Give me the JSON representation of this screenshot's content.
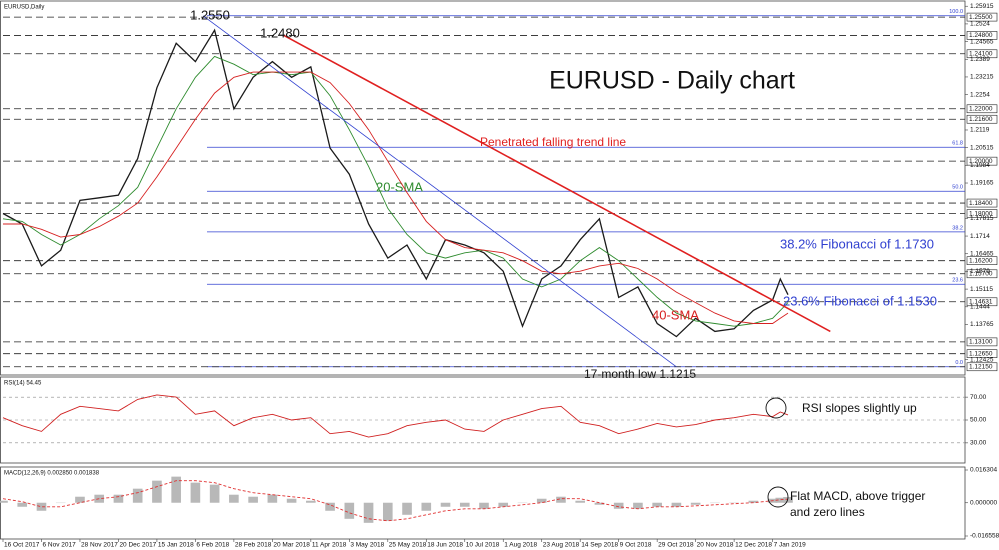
{
  "chart_data": [
    {
      "type": "line",
      "title": "EURUSD - Daily chart",
      "label": "EURUSD,Daily",
      "x": [
        0,
        0.5,
        1,
        1.5,
        2,
        2.5,
        3,
        3.5,
        4,
        4.5,
        5,
        5.5,
        6,
        6.5,
        7,
        7.5,
        8,
        8.5,
        9,
        9.5,
        10,
        10.5,
        11,
        11.5,
        12,
        12.5,
        13,
        13.5,
        14,
        14.5,
        15,
        15.5,
        16,
        16.5,
        17,
        17.5,
        18,
        18.5,
        19,
        19.5,
        20,
        20.2,
        20.4
      ],
      "xlim": [
        0,
        25
      ],
      "xticks": [
        {
          "value": 0,
          "label": "16 Oct 2017"
        },
        {
          "value": 1,
          "label": "6 Nov 2017"
        },
        {
          "value": 2,
          "label": "28 Nov 2017"
        },
        {
          "value": 3,
          "label": "20 Dec 2017"
        },
        {
          "value": 4,
          "label": "15 Jan 2018"
        },
        {
          "value": 5,
          "label": "6 Feb 2018"
        },
        {
          "value": 6,
          "label": "28 Feb 2018"
        },
        {
          "value": 7,
          "label": "20 Mar 2018"
        },
        {
          "value": 8,
          "label": "11 Apr 2018"
        },
        {
          "value": 9,
          "label": "3 May 2018"
        },
        {
          "value": 10,
          "label": "25 May 2018"
        },
        {
          "value": 11,
          "label": "18 Jun 2018"
        },
        {
          "value": 12,
          "label": "10 Jul 2018"
        },
        {
          "value": 13,
          "label": "1 Aug 2018"
        },
        {
          "value": 14,
          "label": "23 Aug 2018"
        },
        {
          "value": 15,
          "label": "14 Sep 2018"
        },
        {
          "value": 16,
          "label": "9 Oct 2018"
        },
        {
          "value": 17,
          "label": "29 Oct 2018"
        },
        {
          "value": 18,
          "label": "20 Nov 2018"
        },
        {
          "value": 19,
          "label": "12 Dec 2018"
        },
        {
          "value": 20,
          "label": "7 Jan 2019"
        }
      ],
      "ylim": [
        1.1195,
        1.26
      ],
      "yticks": [
        1.25915,
        1.2524,
        1.24565,
        1.2389,
        1.23215,
        1.2254,
        1.2119,
        1.20515,
        1.1984,
        1.19165,
        1.17815,
        1.1714,
        1.16465,
        1.1579,
        1.15115,
        1.1444,
        1.13765,
        1.12425
      ],
      "levels": [
        {
          "value": 1.255,
          "label": "1.25500"
        },
        {
          "value": 1.248,
          "label": "1.24800"
        },
        {
          "value": 1.241,
          "label": "1.24100"
        },
        {
          "value": 1.22,
          "label": "1.22000"
        },
        {
          "value": 1.216,
          "label": "1.21600"
        },
        {
          "value": 1.2,
          "label": "1.20000"
        },
        {
          "value": 1.184,
          "label": "1.18400"
        },
        {
          "value": 1.18,
          "label": "1.18000"
        },
        {
          "value": 1.162,
          "label": "1.16200"
        },
        {
          "value": 1.157,
          "label": "1.15700"
        },
        {
          "value": 1.14631,
          "label": "1.14631"
        },
        {
          "value": 1.131,
          "label": "1.13100"
        },
        {
          "value": 1.1265,
          "label": "1.12650"
        },
        {
          "value": 1.1215,
          "label": "1.12150"
        }
      ],
      "fibonacci": [
        {
          "value": 1.2555,
          "label": "100.0"
        },
        {
          "value": 1.2053,
          "label": "61.8"
        },
        {
          "value": 1.1885,
          "label": "50.0"
        },
        {
          "value": 1.173,
          "label": "38.2"
        },
        {
          "value": 1.153,
          "label": "23.6"
        },
        {
          "value": 1.1215,
          "label": "0.0"
        }
      ],
      "fib_color": "#3040d0",
      "series": [
        {
          "color": "#1a1a1a",
          "values": [
            1.18,
            1.176,
            1.16,
            1.166,
            1.185,
            1.186,
            1.187,
            1.201,
            1.228,
            1.245,
            1.238,
            1.25,
            1.22,
            1.232,
            1.238,
            1.232,
            1.236,
            1.205,
            1.195,
            1.176,
            1.163,
            1.168,
            1.155,
            1.17,
            1.168,
            1.165,
            1.158,
            1.137,
            1.155,
            1.16,
            1.17,
            1.178,
            1.148,
            1.152,
            1.138,
            1.133,
            1.14,
            1.135,
            1.136,
            1.143,
            1.147,
            1.155,
            1.149
          ]
        },
        {
          "name": "20-SMA",
          "color": "#2e8b2e",
          "values": [
            1.178,
            1.177,
            1.172,
            1.168,
            1.172,
            1.178,
            1.183,
            1.19,
            1.205,
            1.22,
            1.232,
            1.24,
            1.237,
            1.233,
            1.234,
            1.233,
            1.234,
            1.225,
            1.212,
            1.198,
            1.182,
            1.172,
            1.165,
            1.163,
            1.165,
            1.166,
            1.163,
            1.155,
            1.152,
            1.155,
            1.162,
            1.167,
            1.162,
            1.155,
            1.148,
            1.142,
            1.139,
            1.138,
            1.137,
            1.138,
            1.14,
            1.143,
            1.146
          ]
        },
        {
          "name": "40-SMA",
          "color": "#d62020",
          "values": [
            1.176,
            1.176,
            1.174,
            1.171,
            1.172,
            1.175,
            1.179,
            1.184,
            1.194,
            1.205,
            1.216,
            1.226,
            1.232,
            1.234,
            1.234,
            1.234,
            1.234,
            1.23,
            1.222,
            1.212,
            1.2,
            1.188,
            1.177,
            1.17,
            1.167,
            1.166,
            1.165,
            1.162,
            1.158,
            1.157,
            1.158,
            1.16,
            1.161,
            1.159,
            1.155,
            1.15,
            1.146,
            1.142,
            1.139,
            1.138,
            1.138,
            1.14,
            1.142
          ]
        }
      ],
      "trend_lines": [
        {
          "name": "Penetrated falling trend line",
          "color": "#e02020",
          "x": [
            7.3,
            21.5
          ],
          "y": [
            1.248,
            1.135
          ]
        },
        {
          "color": "#3040d0",
          "x": [
            5.2,
            17.5
          ],
          "y": [
            1.2555,
            1.1215
          ]
        }
      ],
      "annotations": [
        "1.2550",
        "1.2480",
        "38.2% Fibonacci of 1.1730",
        "23.6% Fibonacci of 1.1530",
        "17-month low 1.1215"
      ]
    },
    {
      "type": "line",
      "label": "RSI(14) 54.45",
      "x": [
        0,
        0.5,
        1,
        1.5,
        2,
        2.5,
        3,
        3.5,
        4,
        4.5,
        5,
        5.5,
        6,
        6.5,
        7,
        7.5,
        8,
        8.5,
        9,
        9.5,
        10,
        10.5,
        11,
        11.5,
        12,
        12.5,
        13,
        13.5,
        14,
        14.5,
        15,
        15.5,
        16,
        16.5,
        17,
        17.5,
        18,
        18.5,
        19,
        19.5,
        20,
        20.2,
        20.4
      ],
      "xlim": [
        0,
        25
      ],
      "ylim": [
        15,
        85
      ],
      "yticks": [
        {
          "value": 70,
          "label": "70.00"
        },
        {
          "value": 50,
          "label": "50.00"
        },
        {
          "value": 30,
          "label": "30.00"
        }
      ],
      "grid": true,
      "series": [
        {
          "color": "#d02020",
          "values": [
            52,
            45,
            40,
            55,
            62,
            60,
            58,
            68,
            72,
            70,
            55,
            58,
            45,
            52,
            55,
            50,
            52,
            38,
            40,
            35,
            38,
            45,
            48,
            50,
            42,
            40,
            50,
            55,
            60,
            62,
            48,
            45,
            38,
            42,
            47,
            44,
            46,
            50,
            52,
            55,
            53,
            57,
            54.45
          ]
        }
      ],
      "annotations": [
        "RSI slopes slightly up"
      ]
    },
    {
      "type": "bar",
      "label": "MACD(12,26,9) 0.002850 0.001838",
      "x": [
        0,
        0.5,
        1,
        1.5,
        2,
        2.5,
        3,
        3.5,
        4,
        4.5,
        5,
        5.5,
        6,
        6.5,
        7,
        7.5,
        8,
        8.5,
        9,
        9.5,
        10,
        10.5,
        11,
        11.5,
        12,
        12.5,
        13,
        13.5,
        14,
        14.5,
        15,
        15.5,
        16,
        16.5,
        17,
        17.5,
        18,
        18.5,
        19,
        19.5,
        20,
        20.2,
        20.4
      ],
      "xlim": [
        0,
        25
      ],
      "ylim": [
        -0.016558,
        0.016304
      ],
      "yticks": [
        {
          "value": 0.016304,
          "label": "0.016304"
        },
        {
          "value": 0,
          "label": "0.000000"
        },
        {
          "value": -0.016558,
          "label": "-0.016558"
        }
      ],
      "series": [
        {
          "type": "bar",
          "color": "#b8b8b8",
          "values": [
            0.001,
            -0.002,
            -0.004,
            0,
            0.003,
            0.004,
            0.004,
            0.007,
            0.011,
            0.013,
            0.01,
            0.009,
            0.004,
            0.003,
            0.004,
            0.002,
            0.001,
            -0.004,
            -0.008,
            -0.01,
            -0.009,
            -0.006,
            -0.004,
            -0.002,
            -0.002,
            -0.003,
            -0.002,
            0,
            0.002,
            0.003,
            0.001,
            -0.001,
            -0.003,
            -0.003,
            -0.002,
            -0.002,
            -0.001,
            0,
            0,
            0.001,
            0.002,
            0.0025,
            0.00285
          ]
        },
        {
          "type": "line",
          "color": "#e03030",
          "dashed": true,
          "values": [
            0.002,
            0.0005,
            -0.002,
            -0.002,
            0,
            0.002,
            0.003,
            0.005,
            0.008,
            0.011,
            0.011,
            0.01,
            0.007,
            0.005,
            0.004,
            0.003,
            0.002,
            -0.001,
            -0.005,
            -0.008,
            -0.009,
            -0.008,
            -0.006,
            -0.004,
            -0.003,
            -0.003,
            -0.002,
            -0.001,
            0,
            0.002,
            0.002,
            0,
            -0.002,
            -0.003,
            -0.002,
            -0.002,
            -0.0015,
            -0.001,
            -0.0005,
            0,
            0.001,
            0.0015,
            0.001838
          ]
        }
      ],
      "annotations": [
        "Flat MACD, above trigger",
        "and zero lines"
      ]
    }
  ]
}
